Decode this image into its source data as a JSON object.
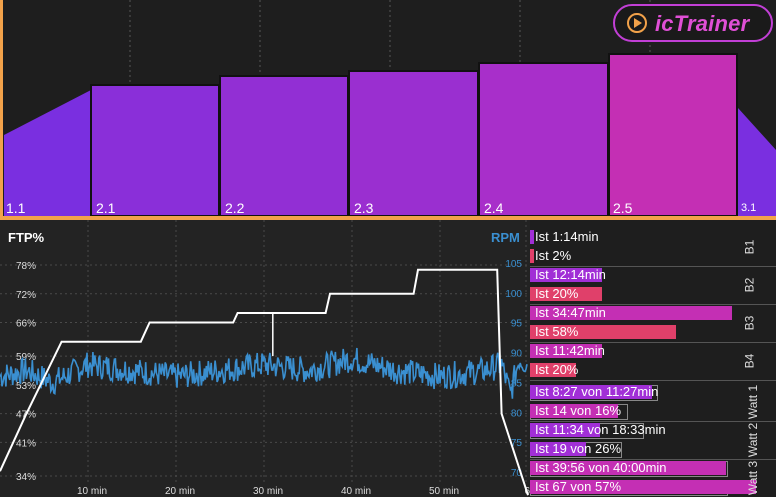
{
  "logo": {
    "text": "icTrainer"
  },
  "workout_segments": [
    {
      "label": "1.1"
    },
    {
      "label": "2.1"
    },
    {
      "label": "2.2"
    },
    {
      "label": "2.3"
    },
    {
      "label": "2.4"
    },
    {
      "label": "2.5"
    },
    {
      "label": "3.1"
    }
  ],
  "chart_data": {
    "type": "line",
    "title": "",
    "xlabel": "",
    "left_axis": {
      "title": "FTP%",
      "ticks": [
        "78%",
        "72%",
        "66%",
        "59%",
        "53%",
        "47%",
        "41%",
        "34%"
      ]
    },
    "right_axis": {
      "title": "RPM",
      "ticks": [
        "105",
        "100",
        "95",
        "90",
        "85",
        "80",
        "75",
        "70"
      ]
    },
    "x_ticks": [
      "10 min",
      "20 min",
      "30 min",
      "40 min",
      "50 min",
      "60"
    ],
    "series": [
      {
        "name": "FTP%",
        "color": "#ffffff",
        "x": [
          0,
          3,
          7,
          16,
          17,
          26.5,
          27,
          37,
          37.5,
          47,
          47.5,
          56.5,
          57,
          60
        ],
        "y": [
          35,
          47,
          62,
          62,
          66,
          66,
          68,
          68,
          72,
          72,
          77,
          77,
          47,
          30
        ]
      },
      {
        "name": "RPM",
        "color": "#3a8fd0",
        "x": [
          0,
          3,
          6,
          10,
          15,
          20,
          25,
          30,
          35,
          40,
          45,
          50,
          55,
          57,
          58,
          59,
          60
        ],
        "y": [
          86,
          87,
          85,
          88,
          87,
          86,
          87,
          88,
          87,
          89,
          87,
          86,
          87,
          88,
          83,
          89,
          88
        ]
      }
    ]
  },
  "stats": {
    "b1": {
      "side": "B1",
      "lines": [
        "Ist 1:14min",
        "Ist 2%"
      ]
    },
    "b2": {
      "side": "B2",
      "lines": [
        "Ist 12:14min",
        "Ist 20%"
      ]
    },
    "b3": {
      "side": "B3",
      "lines": [
        "Ist 34:47min",
        "Ist 58%"
      ]
    },
    "b4": {
      "side": "B4",
      "lines": [
        "Ist 11:42min",
        "Ist 20%"
      ]
    },
    "w1": {
      "side": "Watt 1",
      "lines": [
        "Ist 8:27 von 11:27min",
        "Ist 14 von 16%"
      ]
    },
    "w2": {
      "side": "Watt 2",
      "lines": [
        "Ist 11:34 von 18:33min",
        "Ist 19 von 26%"
      ]
    },
    "w3": {
      "side": "Watt 3",
      "lines": [
        "Ist 39:56 von 40:00min",
        "Ist 67 von 57%"
      ]
    }
  },
  "colors": {
    "zone_purple": "#8c2fd6",
    "zone_magenta": "#c42fb4",
    "stat_red": "#e0406a",
    "stat_violet": "#a12fd6",
    "line_blue": "#3a8fd0",
    "accent_orange": "#f2a24a"
  }
}
